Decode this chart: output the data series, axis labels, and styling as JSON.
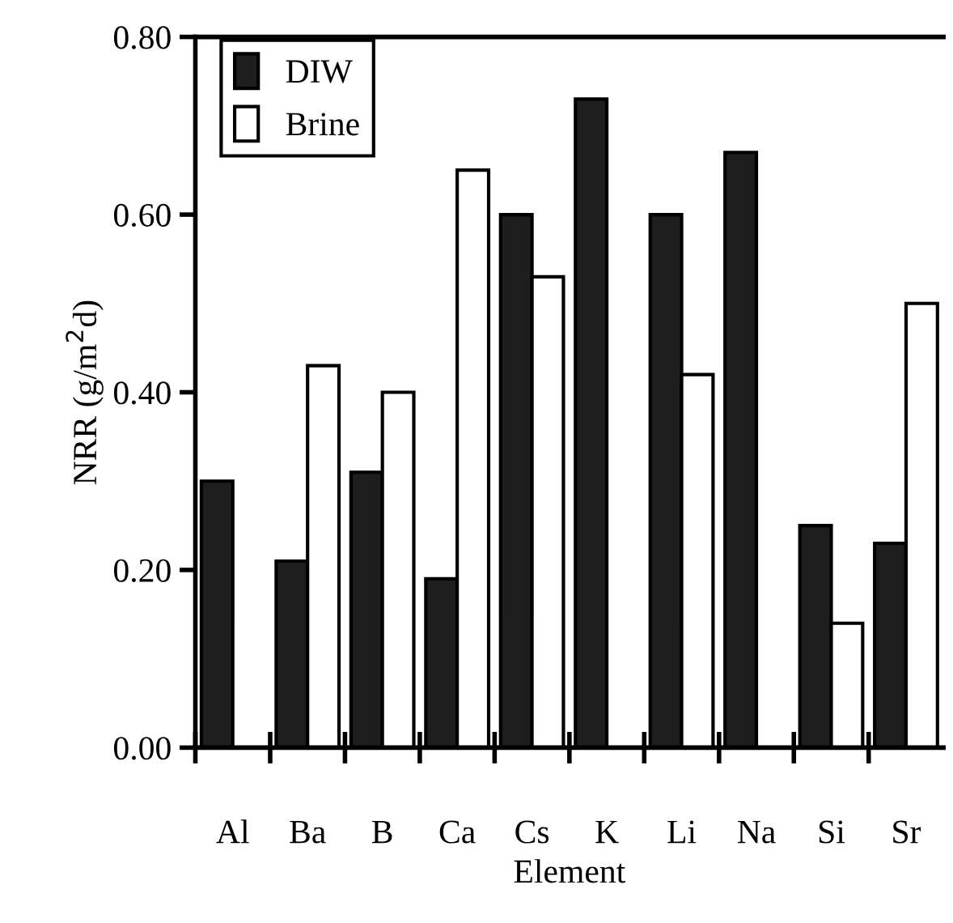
{
  "chart_data": {
    "type": "bar",
    "xlabel": "Element",
    "ylabel": "NRR (g/m$^{2}$d)",
    "categories": [
      "Al",
      "Ba",
      "B",
      "Ca",
      "Cs",
      "K",
      "Li",
      "Na",
      "Si",
      "Sr"
    ],
    "series": [
      {
        "name": "DIW",
        "color": "#1e1e1e",
        "values": [
          0.3,
          0.21,
          0.31,
          0.19,
          0.6,
          0.73,
          0.6,
          0.67,
          0.25,
          0.23
        ]
      },
      {
        "name": "Brine",
        "color": "#ffffff",
        "values": [
          null,
          0.43,
          0.4,
          0.65,
          0.53,
          null,
          0.42,
          null,
          0.14,
          0.5
        ]
      }
    ],
    "ylim": [
      0,
      0.8
    ],
    "yticks": [
      {
        "value": 0,
        "label": "0.00"
      },
      {
        "value": 0.2,
        "label": "0.20"
      },
      {
        "value": 0.4,
        "label": "0.40"
      },
      {
        "value": 0.6,
        "label": "0.60"
      },
      {
        "value": 0.8,
        "label": "0.80"
      }
    ],
    "legend": "top left",
    "grid": false
  }
}
